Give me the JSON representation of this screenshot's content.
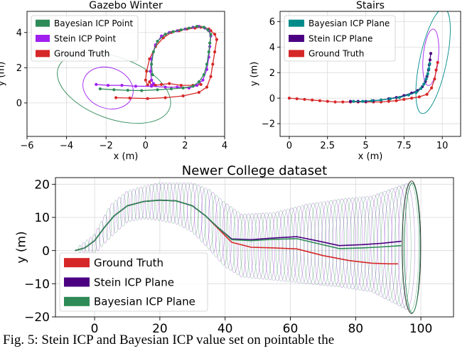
{
  "figure": {
    "caption": "Fig. 5: Stein ICP and Bayesian ICP value set on pointable the"
  },
  "chart_data": [
    {
      "type": "line",
      "title": "Gazebo Winter",
      "xlabel": "x (m)",
      "ylabel": "y (m)",
      "xlim": [
        -6,
        4
      ],
      "ylim": [
        -1.9,
        5.2
      ],
      "xticks": [
        -6,
        -4,
        -2,
        0,
        2,
        4
      ],
      "yticks": [
        0,
        2,
        4
      ],
      "grid": true,
      "legend_position": "top-left",
      "legend": [
        {
          "label": "Bayesian ICP Point",
          "color": "#2e8b57"
        },
        {
          "label": "Stein ICP Point",
          "color": "#a020f0"
        },
        {
          "label": "Ground Truth",
          "color": "#d62728"
        }
      ],
      "series": [
        {
          "name": "Ground Truth",
          "color": "#d62728",
          "x": [
            -1.5,
            -0.8,
            0.1,
            1.0,
            1.9,
            2.7,
            3.1,
            3.3,
            3.4,
            3.5,
            3.6,
            3.5,
            3.3,
            3.2,
            3.0,
            2.8,
            2.5,
            2.1,
            1.7,
            1.3,
            0.9,
            0.5,
            0.2,
            0.05,
            0.0,
            0.1,
            0.2,
            0.3,
            0.5,
            0.8,
            1.2,
            1.8,
            2.4,
            2.8
          ],
          "y": [
            0.3,
            0.28,
            0.25,
            0.3,
            0.4,
            0.6,
            0.9,
            1.5,
            2.2,
            2.9,
            3.6,
            3.9,
            4.1,
            4.2,
            4.25,
            4.3,
            4.25,
            4.2,
            4.1,
            4.0,
            3.7,
            3.2,
            2.5,
            1.8,
            1.3,
            1.0,
            1.2,
            1.0,
            1.0,
            1.05,
            1.1,
            1.0,
            1.0,
            1.05
          ]
        },
        {
          "name": "Stein ICP Point",
          "color": "#a020f0",
          "x": [
            -2.5,
            -1.9,
            -1.2,
            -0.5,
            0.3,
            1.0,
            1.6,
            2.2,
            2.6,
            2.9,
            3.1,
            3.2,
            3.25,
            3.3,
            3.2,
            3.0,
            2.7,
            2.4,
            2.0,
            1.6,
            1.2,
            0.8,
            0.5,
            0.3,
            0.25,
            0.3,
            0.4,
            0.3
          ],
          "y": [
            1.05,
            1.0,
            1.0,
            0.95,
            0.95,
            0.9,
            0.9,
            0.85,
            1.0,
            1.3,
            1.9,
            2.6,
            3.2,
            3.8,
            4.1,
            4.25,
            4.35,
            4.3,
            4.2,
            4.1,
            4.0,
            3.8,
            3.3,
            2.5,
            1.8,
            1.3,
            1.1,
            1.0
          ]
        },
        {
          "name": "Bayesian ICP Point",
          "color": "#2e8b57",
          "x": [
            -2.3,
            -1.6,
            -0.9,
            -0.2,
            0.6,
            1.3,
            1.9,
            2.4,
            2.7,
            2.95,
            3.1,
            3.2,
            3.25,
            3.3,
            3.15,
            2.95,
            2.6,
            2.2,
            1.8,
            1.4,
            1.0,
            0.6,
            0.4,
            0.3,
            0.35
          ],
          "y": [
            0.8,
            0.75,
            0.72,
            0.7,
            0.75,
            0.8,
            0.85,
            0.95,
            1.2,
            1.6,
            2.2,
            2.9,
            3.4,
            3.9,
            4.15,
            4.3,
            4.35,
            4.25,
            4.15,
            4.05,
            3.9,
            3.5,
            2.9,
            2.2,
            1.6
          ]
        }
      ],
      "uncertainty_ellipses": [
        {
          "series": "Bayesian ICP Point",
          "center": [
            -1.6,
            0.85
          ],
          "semi_axes": [
            3.0,
            1.75
          ],
          "angle_deg": -20,
          "color": "#2e8b57"
        },
        {
          "series": "Stein ICP Point",
          "center": [
            -1.9,
            0.85
          ],
          "semi_axes": [
            1.3,
            1.15
          ],
          "angle_deg": -20,
          "color": "#a020f0"
        }
      ]
    },
    {
      "type": "line",
      "title": "Stairs",
      "xlabel": "x (m)",
      "ylabel": "y (m)",
      "xlim": [
        -0.6,
        11.2
      ],
      "ylim": [
        -3.0,
        6.8
      ],
      "xticks": [
        0.0,
        2.5,
        5.0,
        7.5,
        10.0
      ],
      "yticks": [
        -2,
        0,
        2,
        4,
        6
      ],
      "grid": true,
      "legend_position": "top-left",
      "legend": [
        {
          "label": "Bayesian ICP Plane",
          "color": "#008b8b"
        },
        {
          "label": "Stein ICP Plane",
          "color": "#4b0082"
        },
        {
          "label": "Ground Truth",
          "color": "#d62728"
        }
      ],
      "series": [
        {
          "name": "Ground Truth",
          "color": "#d62728",
          "x": [
            0.0,
            0.5,
            1.0,
            1.5,
            2.0,
            2.5,
            3.0,
            3.5,
            4.0,
            4.5,
            5.0,
            5.5,
            6.0,
            6.5,
            7.0,
            7.5,
            8.0,
            8.5,
            9.0,
            9.3,
            9.5,
            9.6,
            9.7
          ],
          "y": [
            0.0,
            -0.05,
            -0.1,
            -0.15,
            -0.2,
            -0.25,
            -0.3,
            -0.3,
            -0.3,
            -0.3,
            -0.3,
            -0.3,
            -0.3,
            -0.25,
            -0.2,
            -0.1,
            0.0,
            0.1,
            0.3,
            0.8,
            1.5,
            2.2,
            2.8
          ]
        },
        {
          "name": "Stein ICP Plane",
          "color": "#4b0082",
          "x": [
            4.0,
            4.5,
            5.0,
            5.5,
            6.0,
            6.5,
            7.0,
            7.5,
            8.0,
            8.4,
            8.7,
            8.9,
            9.0,
            9.1,
            9.15,
            9.2,
            9.25
          ],
          "y": [
            -0.25,
            -0.25,
            -0.25,
            -0.2,
            -0.15,
            -0.05,
            0.05,
            0.2,
            0.4,
            0.6,
            0.9,
            1.3,
            1.7,
            2.2,
            2.6,
            3.0,
            3.5
          ]
        },
        {
          "name": "Bayesian ICP Plane",
          "color": "#008b8b",
          "x": [
            4.2,
            4.8,
            5.4,
            6.0,
            6.6,
            7.2,
            7.8,
            8.3,
            8.6,
            8.8,
            8.95,
            9.05,
            9.12,
            9.18
          ],
          "y": [
            -0.25,
            -0.25,
            -0.2,
            -0.15,
            -0.05,
            0.05,
            0.25,
            0.45,
            0.75,
            1.1,
            1.5,
            1.9,
            2.3,
            2.7
          ]
        }
      ],
      "uncertainty_ellipses": [
        {
          "series": "Bayesian ICP Plane",
          "center": [
            9.4,
            2.9
          ],
          "semi_axes": [
            3.5,
            1.05
          ],
          "angle_deg": 78,
          "color": "#008b8b"
        },
        {
          "series": "Stein ICP Plane",
          "center": [
            9.25,
            3.2
          ],
          "semi_axes": [
            1.85,
            0.6
          ],
          "angle_deg": 85,
          "color": "#a020f0"
        }
      ]
    },
    {
      "type": "line",
      "title": "Newer College dataset",
      "xlabel": "x (m)",
      "ylabel": "y (m)",
      "xlim": [
        -12,
        110
      ],
      "ylim": [
        -20,
        22
      ],
      "xticks": [
        0,
        20,
        40,
        60,
        80,
        100
      ],
      "yticks": [
        -20,
        -10,
        0,
        10,
        20
      ],
      "grid": true,
      "legend_position": "lower-left",
      "legend": [
        {
          "label": "Ground Truth",
          "color": "#d62728"
        },
        {
          "label": "Stein ICP Plane",
          "color": "#4b0082"
        },
        {
          "label": "Bayesian ICP Plane",
          "color": "#2e8b57"
        }
      ],
      "series": [
        {
          "name": "Ground Truth",
          "color": "#d62728",
          "x": [
            -6,
            -3,
            0,
            3,
            6,
            10,
            15,
            20,
            25,
            30,
            34,
            38,
            42,
            48,
            55,
            62,
            70,
            78,
            85,
            90,
            93
          ],
          "y": [
            0,
            0.8,
            3,
            7,
            10.5,
            13.5,
            14.8,
            15.2,
            15.0,
            13.5,
            10.5,
            6.5,
            2.5,
            1.0,
            0.8,
            0.5,
            -1.5,
            -3.0,
            -3.8,
            -4.0,
            -4.0
          ]
        },
        {
          "name": "Stein ICP Plane",
          "color": "#4b0082",
          "x": [
            -6,
            -3,
            0,
            3,
            6,
            10,
            15,
            20,
            25,
            30,
            34,
            38,
            42,
            48,
            55,
            62,
            68,
            75,
            82,
            88,
            94
          ],
          "y": [
            0,
            0.8,
            3,
            7,
            10.5,
            13.5,
            14.8,
            15.2,
            15.0,
            13.5,
            10.5,
            6.8,
            3.5,
            3.3,
            3.8,
            4.2,
            3.0,
            1.5,
            1.8,
            2.2,
            2.8
          ]
        },
        {
          "name": "Bayesian ICP Plane",
          "color": "#2e8b57",
          "x": [
            -6,
            -3,
            0,
            3,
            6,
            10,
            15,
            20,
            25,
            30,
            34,
            38,
            42,
            48,
            55,
            62,
            68,
            75,
            82,
            88,
            94
          ],
          "y": [
            0,
            0.8,
            3,
            7,
            10.5,
            13.5,
            14.8,
            15.2,
            15.0,
            13.5,
            10.5,
            6.8,
            3.3,
            3.0,
            3.4,
            3.6,
            2.2,
            0.6,
            0.8,
            1.1,
            1.5
          ]
        }
      ],
      "uncertainty_band": {
        "x": [
          -6,
          0,
          5,
          10,
          15,
          20,
          25,
          30,
          35,
          40,
          45,
          55,
          65,
          75,
          85,
          92,
          98
        ],
        "upper": [
          0.5,
          5,
          14,
          18,
          19.5,
          20.5,
          20.5,
          20.5,
          18.5,
          14.5,
          11,
          11.5,
          14,
          15.5,
          16.5,
          19,
          21
        ],
        "lower": [
          -0.5,
          -1,
          4,
          8.5,
          9.5,
          9,
          8,
          5.5,
          0.5,
          -5,
          -8,
          -9,
          -10,
          -11,
          -12.5,
          -16,
          -19
        ],
        "colors": [
          "#2e8b57",
          "#7b2fbe"
        ]
      }
    }
  ]
}
